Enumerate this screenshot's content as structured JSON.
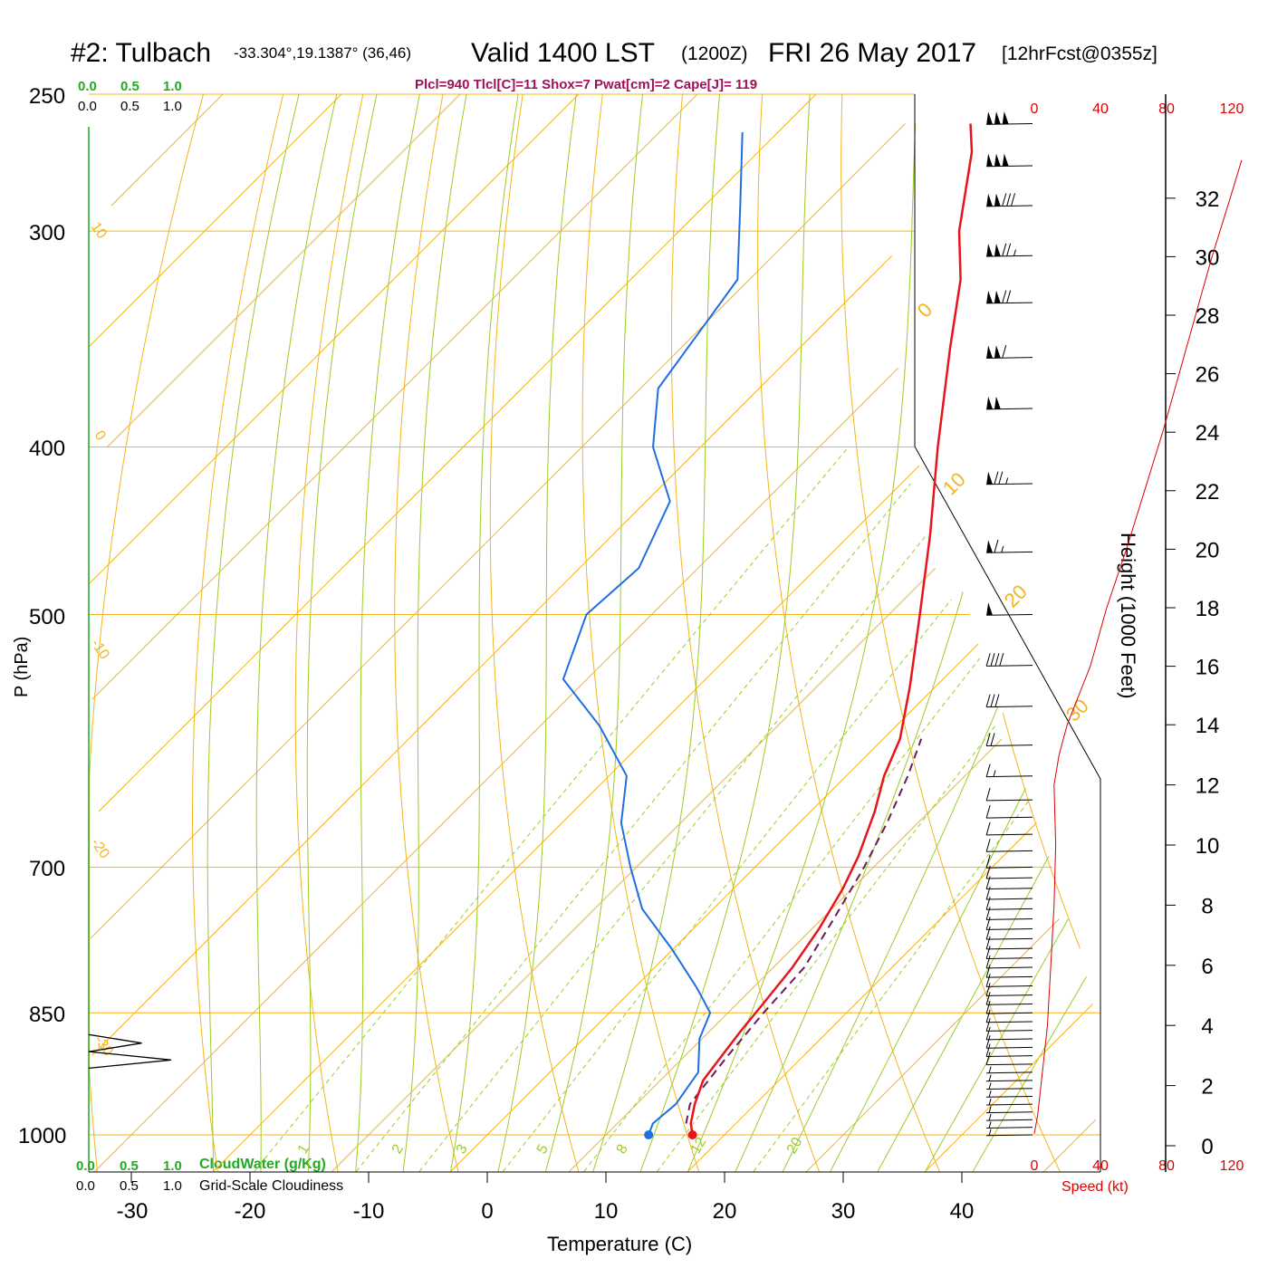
{
  "header": {
    "station": "#2: Tulbach",
    "coords": "-33.304°,19.1387° (36,46)",
    "valid": "Valid 1400 LST",
    "zulu": "(1200Z)",
    "date": "FRI 26 May 2017",
    "forecast": "[12hrFcst@0355z]",
    "indices": "Plcl=940 Tlcl[C]=11 Shox=7 Pwat[cm]=2 Cape[J]= 119"
  },
  "axes": {
    "ylabel": "P (hPa)",
    "xlabel": "Temperature (C)",
    "right_label": "Height (1000 Feet)",
    "speed_label": "Speed (kt)",
    "cloudwater_label": "CloudWater (g/Kg)",
    "cloudiness_label": "Grid-Scale Cloudiness",
    "cloud_scale": [
      "0.0",
      "0.5",
      "1.0"
    ],
    "pressure_ticks": [
      250,
      300,
      400,
      500,
      700,
      850,
      1000
    ],
    "temp_ticks": [
      -30,
      -20,
      -10,
      0,
      10,
      20,
      30,
      40
    ],
    "height_ticks": [
      0,
      2,
      4,
      6,
      8,
      10,
      12,
      14,
      16,
      18,
      20,
      22,
      24,
      26,
      28,
      30,
      32
    ],
    "speed_ticks": [
      0,
      40,
      80,
      120
    ],
    "mixing_ratio_labels": [
      "1",
      "2",
      "3",
      "5",
      "8",
      "12",
      "20"
    ],
    "dry_adiabat_labels": [
      "10",
      "0",
      "-10",
      "-20",
      "-30"
    ],
    "isotherm_labels": [
      "0",
      "10",
      "20",
      "30"
    ]
  },
  "colors": {
    "temperature": "#e8141c",
    "dewpoint": "#1f6fe0",
    "parcel": "#6e1a5a",
    "isobar": "#f4b41c",
    "isotherm": "#f4b41c",
    "dry_adiabat": "#f4b41c",
    "moist_adiabat": "#9ccc28",
    "mixing_ratio": "#9ccc28",
    "cloudwater": "#22aa22",
    "speed": "#dd0000",
    "indices": "#a0105a"
  },
  "chart_data": {
    "type": "skew-t",
    "xlim": [
      -36,
      47
    ],
    "ylim": [
      1050,
      250
    ],
    "temperature_profile": [
      {
        "p": 1000,
        "t": 17.3
      },
      {
        "p": 985,
        "t": 16.2
      },
      {
        "p": 960,
        "t": 14.9
      },
      {
        "p": 930,
        "t": 13.6
      },
      {
        "p": 900,
        "t": 13.1
      },
      {
        "p": 870,
        "t": 12.6
      },
      {
        "p": 840,
        "t": 12.2
      },
      {
        "p": 800,
        "t": 11.6
      },
      {
        "p": 760,
        "t": 10.6
      },
      {
        "p": 720,
        "t": 9.2
      },
      {
        "p": 690,
        "t": 7.8
      },
      {
        "p": 650,
        "t": 5.4
      },
      {
        "p": 620,
        "t": 3.2
      },
      {
        "p": 590,
        "t": 1.4
      },
      {
        "p": 550,
        "t": -2.2
      },
      {
        "p": 500,
        "t": -7.4
      },
      {
        "p": 450,
        "t": -13.2
      },
      {
        "p": 400,
        "t": -20.0
      },
      {
        "p": 350,
        "t": -27.4
      },
      {
        "p": 320,
        "t": -32.2
      },
      {
        "p": 300,
        "t": -36.4
      },
      {
        "p": 270,
        "t": -42.0
      },
      {
        "p": 260,
        "t": -44.5
      }
    ],
    "dewpoint_profile": [
      {
        "p": 1000,
        "td": 13.6
      },
      {
        "p": 985,
        "td": 13.0
      },
      {
        "p": 960,
        "td": 13.3
      },
      {
        "p": 920,
        "td": 12.5
      },
      {
        "p": 880,
        "td": 9.8
      },
      {
        "p": 850,
        "td": 8.5
      },
      {
        "p": 830,
        "td": 6.2
      },
      {
        "p": 820,
        "td": 5.0
      },
      {
        "p": 780,
        "td": -0.2
      },
      {
        "p": 740,
        "td": -6.0
      },
      {
        "p": 700,
        "td": -10.5
      },
      {
        "p": 660,
        "td": -15.0
      },
      {
        "p": 620,
        "td": -18.5
      },
      {
        "p": 580,
        "td": -25.0
      },
      {
        "p": 545,
        "td": -32.0
      },
      {
        "p": 500,
        "td": -35.5
      },
      {
        "p": 470,
        "td": -35.0
      },
      {
        "p": 430,
        "td": -38.0
      },
      {
        "p": 400,
        "td": -44.0
      },
      {
        "p": 370,
        "td": -48.5
      },
      {
        "p": 320,
        "td": -51.0
      },
      {
        "p": 290,
        "td": -57.0
      },
      {
        "p": 263,
        "td": -63.0
      }
    ],
    "parcel_profile": [
      {
        "p": 985,
        "t": 15.8
      },
      {
        "p": 960,
        "t": 14.5
      },
      {
        "p": 940,
        "t": 14.2
      },
      {
        "p": 900,
        "t": 13.6
      },
      {
        "p": 850,
        "t": 13.0
      },
      {
        "p": 800,
        "t": 12.6
      },
      {
        "p": 750,
        "t": 11.0
      },
      {
        "p": 700,
        "t": 9.2
      },
      {
        "p": 660,
        "t": 7.4
      },
      {
        "p": 620,
        "t": 5.2
      },
      {
        "p": 590,
        "t": 3.2
      }
    ],
    "surface_temperature_c": 17.3,
    "surface_dewpoint_c": 13.6,
    "wind_speed_profile": [
      {
        "h": 0.4,
        "s": 0
      },
      {
        "h": 1,
        "s": 2
      },
      {
        "h": 2,
        "s": 4
      },
      {
        "h": 3,
        "s": 6
      },
      {
        "h": 4,
        "s": 8
      },
      {
        "h": 5,
        "s": 9
      },
      {
        "h": 6,
        "s": 10
      },
      {
        "h": 8,
        "s": 12
      },
      {
        "h": 10,
        "s": 13
      },
      {
        "h": 12,
        "s": 12
      },
      {
        "h": 13,
        "s": 15
      },
      {
        "h": 14,
        "s": 20
      },
      {
        "h": 15,
        "s": 27
      },
      {
        "h": 16,
        "s": 34
      },
      {
        "h": 18,
        "s": 44
      },
      {
        "h": 20,
        "s": 56
      },
      {
        "h": 22,
        "s": 67
      },
      {
        "h": 24,
        "s": 78
      },
      {
        "h": 26,
        "s": 88
      },
      {
        "h": 28,
        "s": 98
      },
      {
        "h": 30,
        "s": 108
      },
      {
        "h": 32,
        "s": 119
      },
      {
        "h": 33.3,
        "s": 126
      }
    ],
    "wind_barbs": [
      {
        "p": 1000,
        "speed": 5
      },
      {
        "p": 990,
        "speed": 5
      },
      {
        "p": 980,
        "speed": 5
      },
      {
        "p": 970,
        "speed": 5
      },
      {
        "p": 960,
        "speed": 5
      },
      {
        "p": 950,
        "speed": 5
      },
      {
        "p": 940,
        "speed": 5
      },
      {
        "p": 930,
        "speed": 5
      },
      {
        "p": 920,
        "speed": 5
      },
      {
        "p": 910,
        "speed": 10
      },
      {
        "p": 900,
        "speed": 10
      },
      {
        "p": 890,
        "speed": 10
      },
      {
        "p": 880,
        "speed": 10
      },
      {
        "p": 870,
        "speed": 10
      },
      {
        "p": 860,
        "speed": 10
      },
      {
        "p": 850,
        "speed": 10
      },
      {
        "p": 840,
        "speed": 10
      },
      {
        "p": 830,
        "speed": 10
      },
      {
        "p": 820,
        "speed": 10
      },
      {
        "p": 810,
        "speed": 10
      },
      {
        "p": 800,
        "speed": 10
      },
      {
        "p": 790,
        "speed": 10
      },
      {
        "p": 780,
        "speed": 10
      },
      {
        "p": 770,
        "speed": 10
      },
      {
        "p": 760,
        "speed": 10
      },
      {
        "p": 750,
        "speed": 10
      },
      {
        "p": 740,
        "speed": 10
      },
      {
        "p": 730,
        "speed": 10
      },
      {
        "p": 720,
        "speed": 10
      },
      {
        "p": 710,
        "speed": 10
      },
      {
        "p": 700,
        "speed": 10
      },
      {
        "p": 685,
        "speed": 10
      },
      {
        "p": 670,
        "speed": 10
      },
      {
        "p": 655,
        "speed": 10
      },
      {
        "p": 640,
        "speed": 10
      },
      {
        "p": 620,
        "speed": 15
      },
      {
        "p": 595,
        "speed": 20
      },
      {
        "p": 565,
        "speed": 30
      },
      {
        "p": 535,
        "speed": 40
      },
      {
        "p": 500,
        "speed": 50
      },
      {
        "p": 460,
        "speed": 65
      },
      {
        "p": 420,
        "speed": 75
      },
      {
        "p": 380,
        "speed": 100
      },
      {
        "p": 355,
        "speed": 110
      },
      {
        "p": 330,
        "speed": 120
      },
      {
        "p": 310,
        "speed": 125
      },
      {
        "p": 290,
        "speed": 130
      },
      {
        "p": 275,
        "speed": 150
      },
      {
        "p": 260,
        "speed": 150
      }
    ],
    "cloudiness_profile": [
      {
        "p": 875,
        "v": 0.0
      },
      {
        "p": 885,
        "v": 0.45
      },
      {
        "p": 895,
        "v": 0.0
      },
      {
        "p": 905,
        "v": 0.7
      },
      {
        "p": 915,
        "v": 0.0
      }
    ]
  }
}
